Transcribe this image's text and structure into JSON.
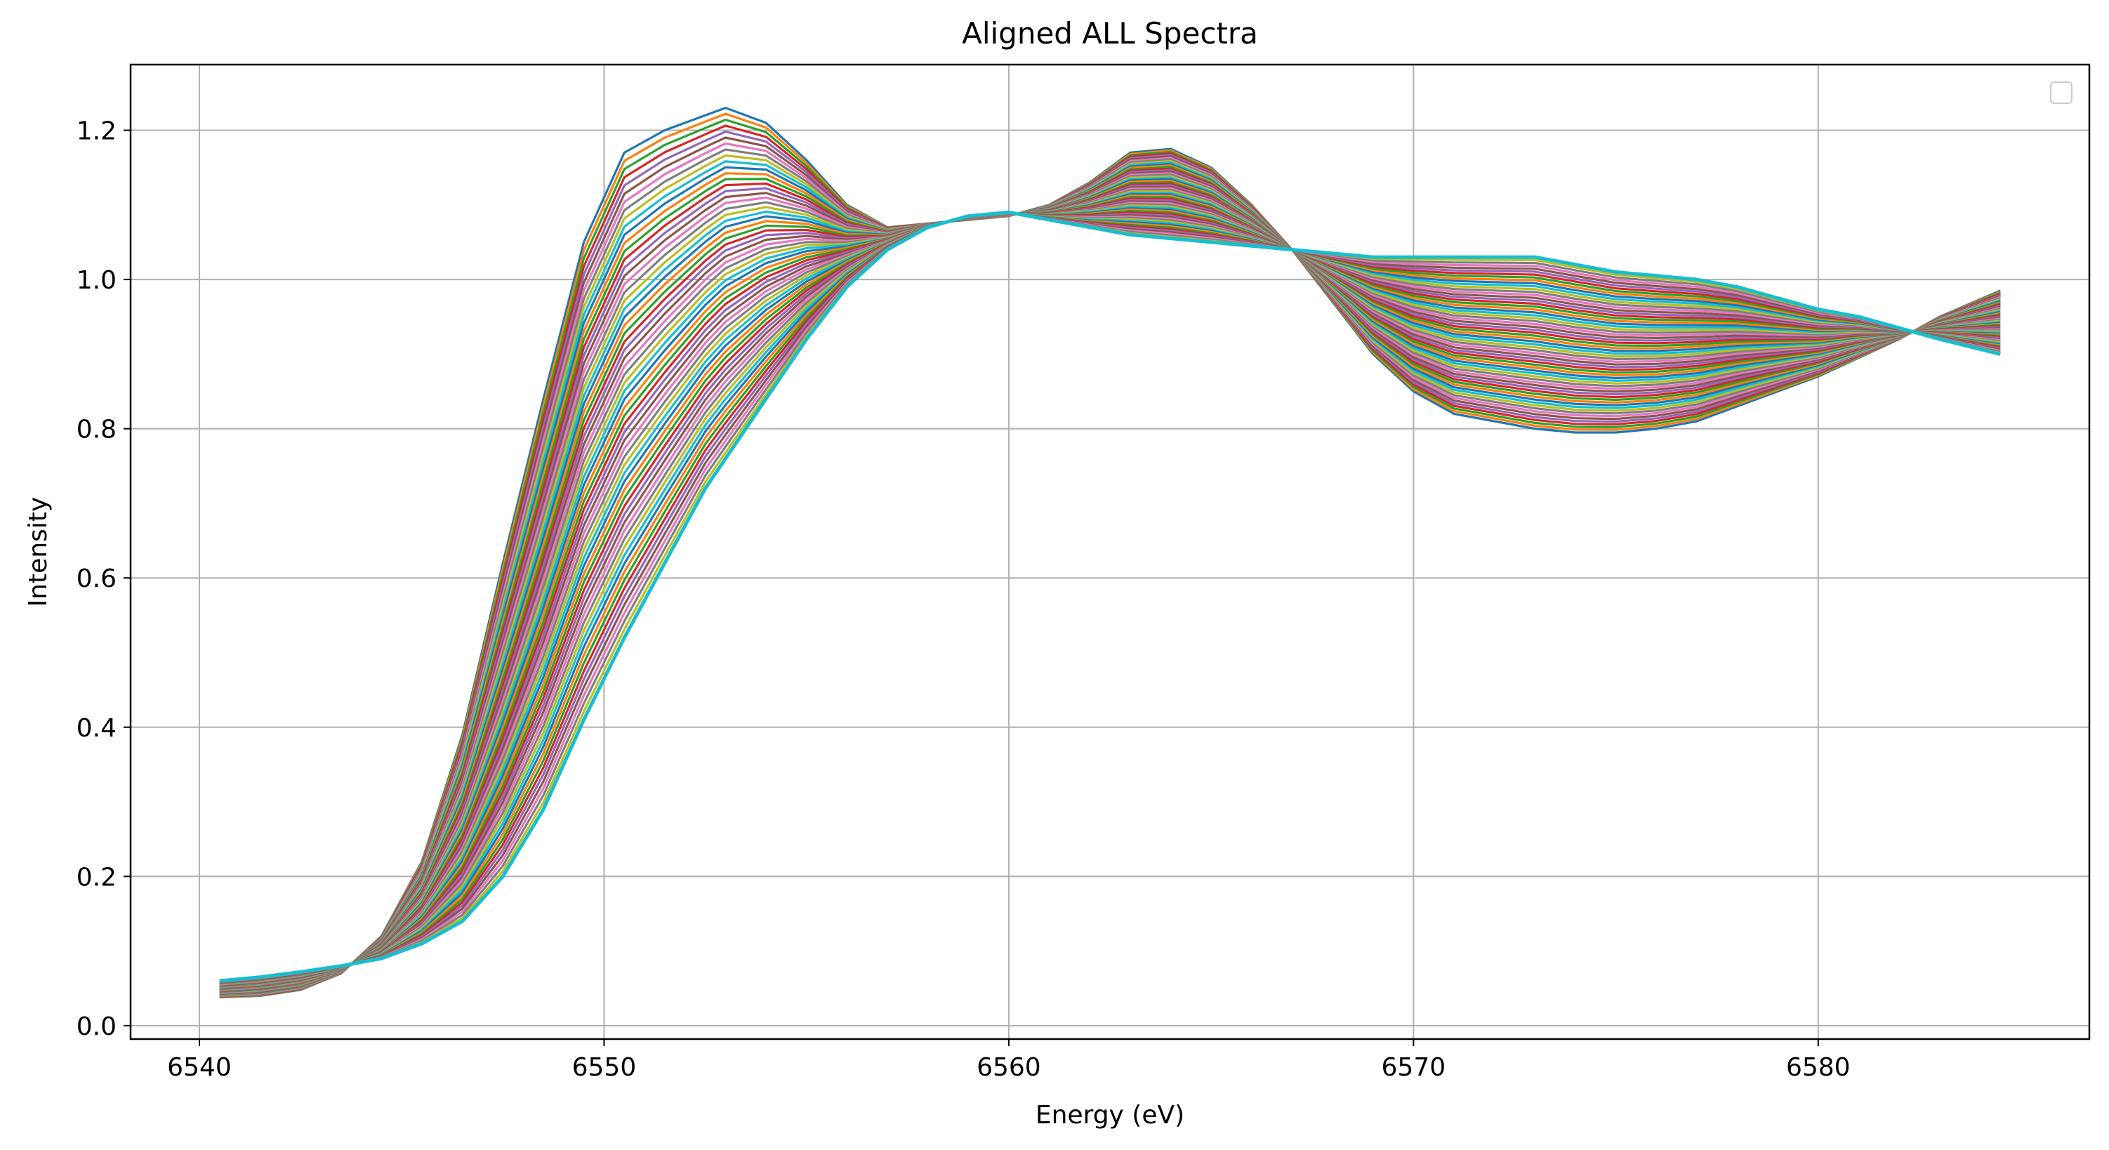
{
  "chart_data": {
    "type": "line",
    "title": "Aligned ALL Spectra",
    "xlabel": "Energy (eV)",
    "ylabel": "Intensity",
    "xlim": [
      6538.3,
      6586.7
    ],
    "ylim": [
      -0.018,
      1.288
    ],
    "xticks": [
      6540,
      6550,
      6560,
      6570,
      6580
    ],
    "yticks": [
      0.0,
      0.2,
      0.4,
      0.6,
      0.8,
      1.0,
      1.2
    ],
    "grid": true,
    "legend": "top-right, empty",
    "series_count": 60,
    "colors": [
      "#1f77b4",
      "#ff7f0e",
      "#2ca02c",
      "#d62728",
      "#9467bd",
      "#8c564b",
      "#e377c2",
      "#7f7f7f",
      "#bcbd22",
      "#17becf"
    ],
    "x": [
      6540.5,
      6541.5,
      6542.5,
      6543.5,
      6544.5,
      6545.5,
      6546.5,
      6547.5,
      6548.5,
      6549.5,
      6550.5,
      6551.5,
      6552.5,
      6553.0,
      6554.0,
      6555.0,
      6556.0,
      6557.0,
      6558.0,
      6559.0,
      6560.0,
      6561.0,
      6562.0,
      6563.0,
      6564.0,
      6565.0,
      6566.0,
      6567.0,
      6568.0,
      6569.0,
      6570.0,
      6571.0,
      6572.0,
      6573.0,
      6574.0,
      6575.0,
      6576.0,
      6577.0,
      6578.0,
      6579.0,
      6580.0,
      6581.0,
      6582.0,
      6583.0,
      6584.5
    ],
    "spectrum_first": [
      0.038,
      0.04,
      0.048,
      0.07,
      0.12,
      0.22,
      0.39,
      0.62,
      0.84,
      1.05,
      1.17,
      1.2,
      1.22,
      1.23,
      1.21,
      1.16,
      1.1,
      1.07,
      1.075,
      1.08,
      1.085,
      1.1,
      1.13,
      1.17,
      1.175,
      1.15,
      1.1,
      1.04,
      0.97,
      0.9,
      0.85,
      0.82,
      0.81,
      0.8,
      0.795,
      0.795,
      0.8,
      0.81,
      0.83,
      0.85,
      0.87,
      0.895,
      0.92,
      0.95,
      0.985
    ],
    "spectrum_last": [
      0.06,
      0.065,
      0.072,
      0.08,
      0.09,
      0.11,
      0.14,
      0.2,
      0.29,
      0.41,
      0.52,
      0.62,
      0.72,
      0.76,
      0.84,
      0.92,
      0.99,
      1.04,
      1.07,
      1.085,
      1.09,
      1.08,
      1.07,
      1.06,
      1.055,
      1.05,
      1.045,
      1.04,
      1.035,
      1.03,
      1.03,
      1.03,
      1.03,
      1.03,
      1.02,
      1.01,
      1.005,
      1.0,
      0.99,
      0.975,
      0.96,
      0.95,
      0.935,
      0.92,
      0.9
    ]
  }
}
